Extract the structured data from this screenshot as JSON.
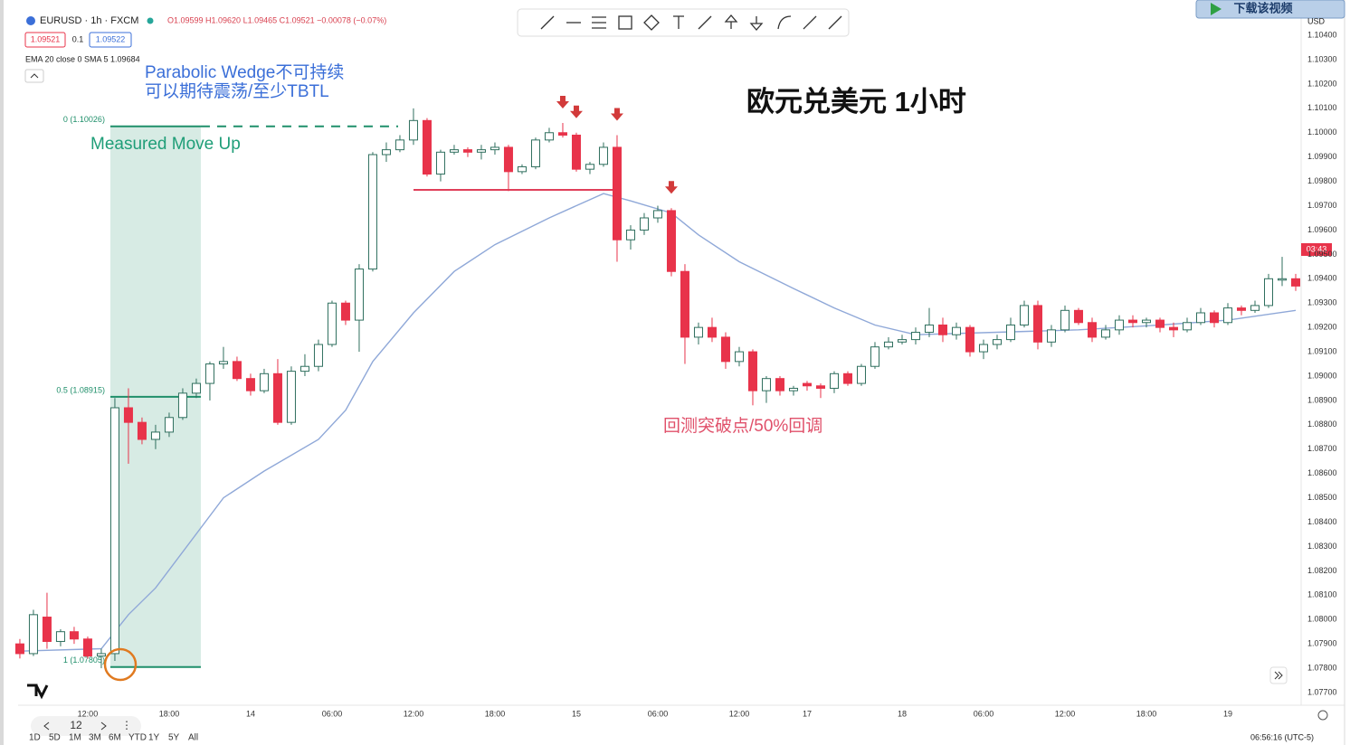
{
  "header": {
    "symbol": "EURUSD · 1h · FXCM",
    "ohlc": "O1.09599 H1.09620 L1.09465 C1.09521 −0.00078 (−0.07%)",
    "bid": "1.09521",
    "spread": "0.1",
    "ask": "1.09522",
    "indicator": "EMA 20 close 0 SMA 5 1.09684"
  },
  "footer": {
    "range_buttons": [
      "1D",
      "5D",
      "1M",
      "3M",
      "6M",
      "YTD",
      "1Y",
      "5Y",
      "All"
    ],
    "clock": "06:56:16 (UTC-5)",
    "zoom": "12",
    "currency": "USD",
    "countdown": "03:43",
    "download": "下载该视频"
  },
  "chart_data": {
    "type": "candlestick",
    "title": "欧元兑美元 1小时",
    "annotations": [
      "Parabolic Wedge不可持续",
      "可以期待震荡/至少TBTL",
      "Measured Move Up",
      "回测突破点/50%回调"
    ],
    "up_color": "#ffffff",
    "up_border": "#2f6f5e",
    "down_color": "#e8334a",
    "open": [
      1.079,
      1.0786,
      1.0801,
      1.0791,
      1.0795,
      1.0792,
      1.0785,
      1.0786,
      1.0887,
      1.0881,
      1.0874,
      1.0877,
      1.0883,
      1.0893,
      1.0897,
      1.0905,
      1.0906,
      1.0899,
      1.0894,
      1.0901,
      1.0881,
      1.0902,
      1.0904,
      1.0913,
      1.093,
      1.0923,
      1.0944,
      1.0991,
      1.0993,
      1.0997,
      1.1005,
      1.0983,
      1.0992,
      1.0993,
      1.0992,
      1.0993,
      1.0994,
      1.0984,
      1.0986,
      1.0997,
      1.1,
      1.0999,
      1.0985,
      1.0987,
      1.0994,
      1.0956,
      1.096,
      1.0965,
      1.0968,
      1.0943,
      1.0916,
      1.092,
      1.0916,
      1.0906,
      1.091,
      1.0894,
      1.0899,
      1.0894,
      1.0897,
      1.0896,
      1.0895,
      1.0901,
      1.0897,
      1.0904,
      1.0912,
      1.0914,
      1.0915,
      1.0918,
      1.0921,
      1.0917,
      1.092,
      1.091,
      1.0913,
      1.0915,
      1.0921,
      1.0929,
      1.0914,
      1.0919,
      1.0927,
      1.0922,
      1.0916,
      1.0919,
      1.0923,
      1.0922,
      1.0923,
      1.092,
      1.0919,
      1.0922,
      1.0926,
      1.0922,
      1.0928,
      1.0927,
      1.0929,
      1.094,
      1.094
    ],
    "high": [
      1.0792,
      1.0804,
      1.0811,
      1.0796,
      1.0797,
      1.0793,
      1.0788,
      1.0891,
      1.0895,
      1.0883,
      1.088,
      1.0885,
      1.0895,
      1.0899,
      1.0906,
      1.0912,
      1.0908,
      1.0901,
      1.0903,
      1.0907,
      1.0904,
      1.0909,
      1.0915,
      1.0931,
      1.0931,
      1.0946,
      1.0992,
      1.0996,
      1.0999,
      1.101,
      1.1006,
      1.0993,
      1.0995,
      1.0994,
      1.0995,
      1.0996,
      1.0995,
      1.0987,
      1.0998,
      1.1002,
      1.1004,
      1.1,
      1.0988,
      1.0996,
      1.0999,
      1.0962,
      1.0967,
      1.097,
      1.0969,
      1.0946,
      1.0922,
      1.0924,
      1.0918,
      1.0912,
      1.0911,
      1.09,
      1.09,
      1.0896,
      1.0898,
      1.0897,
      1.0902,
      1.0902,
      1.0905,
      1.0914,
      1.0916,
      1.0917,
      1.092,
      1.0928,
      1.0924,
      1.0922,
      1.0921,
      1.0915,
      1.0917,
      1.0924,
      1.0931,
      1.0931,
      1.0921,
      1.0929,
      1.0928,
      1.0924,
      1.0921,
      1.0925,
      1.0925,
      1.0924,
      1.0924,
      1.0922,
      1.0924,
      1.0928,
      1.0927,
      1.093,
      1.0929,
      1.0931,
      1.0942,
      1.0949,
      1.0942
    ],
    "low": [
      1.0784,
      1.0785,
      1.0788,
      1.0789,
      1.079,
      1.0784,
      1.078,
      1.0783,
      1.0864,
      1.0872,
      1.087,
      1.0875,
      1.0882,
      1.0891,
      1.089,
      1.0903,
      1.0898,
      1.0892,
      1.0893,
      1.088,
      1.088,
      1.09,
      1.0902,
      1.0912,
      1.0921,
      1.091,
      1.0943,
      1.0988,
      1.0992,
      1.0995,
      1.0982,
      1.098,
      1.0991,
      1.099,
      1.0989,
      1.0991,
      1.0976,
      1.0983,
      1.0985,
      1.0996,
      1.0998,
      1.0984,
      1.0983,
      1.0986,
      1.0947,
      1.0952,
      1.0958,
      1.0963,
      1.0941,
      1.0905,
      1.0913,
      1.0914,
      1.0903,
      1.0904,
      1.0888,
      1.0889,
      1.0892,
      1.0892,
      1.0894,
      1.0891,
      1.0893,
      1.0896,
      1.0896,
      1.0903,
      1.0911,
      1.0913,
      1.0913,
      1.0916,
      1.0914,
      1.0915,
      1.0908,
      1.0907,
      1.0911,
      1.0914,
      1.092,
      1.0911,
      1.0912,
      1.0918,
      1.0921,
      1.0914,
      1.0915,
      1.0917,
      1.092,
      1.092,
      1.0918,
      1.0916,
      1.0918,
      1.0921,
      1.092,
      1.0921,
      1.0925,
      1.0926,
      1.0928,
      1.0937,
      1.0935
    ],
    "close": [
      1.0786,
      1.0802,
      1.0791,
      1.0795,
      1.0792,
      1.0785,
      1.0786,
      1.0887,
      1.0881,
      1.0874,
      1.0877,
      1.0883,
      1.0893,
      1.0897,
      1.0905,
      1.0906,
      1.0899,
      1.0894,
      1.0901,
      1.0881,
      1.0902,
      1.0904,
      1.0913,
      1.093,
      1.0923,
      1.0944,
      1.0991,
      1.0993,
      1.0997,
      1.1005,
      1.0983,
      1.0992,
      1.0993,
      1.0992,
      1.0993,
      1.0994,
      1.0984,
      1.0986,
      1.0997,
      1.1,
      1.0999,
      1.0985,
      1.0987,
      1.0994,
      1.0956,
      1.096,
      1.0965,
      1.0968,
      1.0943,
      1.0916,
      1.092,
      1.0916,
      1.0906,
      1.091,
      1.0894,
      1.0899,
      1.0894,
      1.0895,
      1.0896,
      1.0895,
      1.0901,
      1.0897,
      1.0904,
      1.0912,
      1.0914,
      1.0915,
      1.0918,
      1.0921,
      1.0917,
      1.092,
      1.091,
      1.0913,
      1.0915,
      1.0921,
      1.0929,
      1.0914,
      1.0919,
      1.0927,
      1.0922,
      1.0916,
      1.0919,
      1.0923,
      1.0922,
      1.0923,
      1.092,
      1.0919,
      1.0922,
      1.0926,
      1.0922,
      1.0928,
      1.0927,
      1.0929,
      1.094,
      1.094,
      1.0937
    ],
    "ema": {
      "color": "#8fa8d8",
      "x": [
        0,
        6,
        8,
        10,
        15,
        18,
        22,
        24,
        26,
        29,
        32,
        35,
        39,
        41,
        43,
        45,
        48,
        50,
        53,
        57,
        60,
        63,
        66,
        72,
        78,
        84,
        89,
        94
      ],
      "values": [
        1.0787,
        1.0788,
        1.0802,
        1.0813,
        1.085,
        1.0861,
        1.0874,
        1.0886,
        1.0906,
        1.0926,
        1.0943,
        1.0954,
        1.0965,
        1.097,
        1.0975,
        1.0972,
        1.0967,
        1.0958,
        1.0947,
        1.0936,
        1.0928,
        1.0921,
        1.0917,
        1.0918,
        1.0919,
        1.0921,
        1.0923,
        1.0927
      ]
    },
    "fib": [
      {
        "label": "0 (1.10026)",
        "value": 1.10026
      },
      {
        "label": "0.5 (1.08915)",
        "value": 1.08915
      },
      {
        "label": "1 (1.07805)",
        "value": 1.07805
      }
    ],
    "fib_color": "#1f8f6a",
    "xlim": [
      -0.13,
      94.4
    ],
    "xticks": [
      {
        "value": 5,
        "label": "12:00"
      },
      {
        "value": 11,
        "label": "18:00"
      },
      {
        "value": 17,
        "label": "14"
      },
      {
        "value": 23,
        "label": "06:00"
      },
      {
        "value": 29,
        "label": "12:00"
      },
      {
        "value": 35,
        "label": "18:00"
      },
      {
        "value": 41,
        "label": "15"
      },
      {
        "value": 47,
        "label": "06:00"
      },
      {
        "value": 53,
        "label": "12:00"
      },
      {
        "value": 58,
        "label": "17"
      },
      {
        "value": 65,
        "label": "18"
      },
      {
        "value": 71,
        "label": "06:00"
      },
      {
        "value": 77,
        "label": "12:00"
      },
      {
        "value": 83,
        "label": "18:00"
      },
      {
        "value": 89,
        "label": "19"
      }
    ],
    "ylim": [
      1.07648,
      1.10508
    ],
    "yticks": [
      {
        "value": 1.104,
        "label": "1.10400"
      },
      {
        "value": 1.103,
        "label": "1.10300"
      },
      {
        "value": 1.102,
        "label": "1.10200"
      },
      {
        "value": 1.101,
        "label": "1.10100"
      },
      {
        "value": 1.1,
        "label": "1.10000"
      },
      {
        "value": 1.099,
        "label": "1.09900"
      },
      {
        "value": 1.098,
        "label": "1.09800"
      },
      {
        "value": 1.097,
        "label": "1.09700"
      },
      {
        "value": 1.096,
        "label": "1.09600"
      },
      {
        "value": 1.095,
        "label": "1.09500"
      },
      {
        "value": 1.094,
        "label": "1.09400"
      },
      {
        "value": 1.093,
        "label": "1.09300"
      },
      {
        "value": 1.092,
        "label": "1.09200"
      },
      {
        "value": 1.091,
        "label": "1.09100"
      },
      {
        "value": 1.09,
        "label": "1.09000"
      },
      {
        "value": 1.089,
        "label": "1.08900"
      },
      {
        "value": 1.088,
        "label": "1.08800"
      },
      {
        "value": 1.087,
        "label": "1.08700"
      },
      {
        "value": 1.086,
        "label": "1.08600"
      },
      {
        "value": 1.085,
        "label": "1.08500"
      },
      {
        "value": 1.084,
        "label": "1.08400"
      },
      {
        "value": 1.083,
        "label": "1.08300"
      },
      {
        "value": 1.082,
        "label": "1.08200"
      },
      {
        "value": 1.081,
        "label": "1.08100"
      },
      {
        "value": 1.08,
        "label": "1.08000"
      },
      {
        "value": 1.079,
        "label": "1.07900"
      },
      {
        "value": 1.078,
        "label": "1.07800"
      },
      {
        "value": 1.077,
        "label": "1.07700"
      }
    ],
    "grid": false
  }
}
